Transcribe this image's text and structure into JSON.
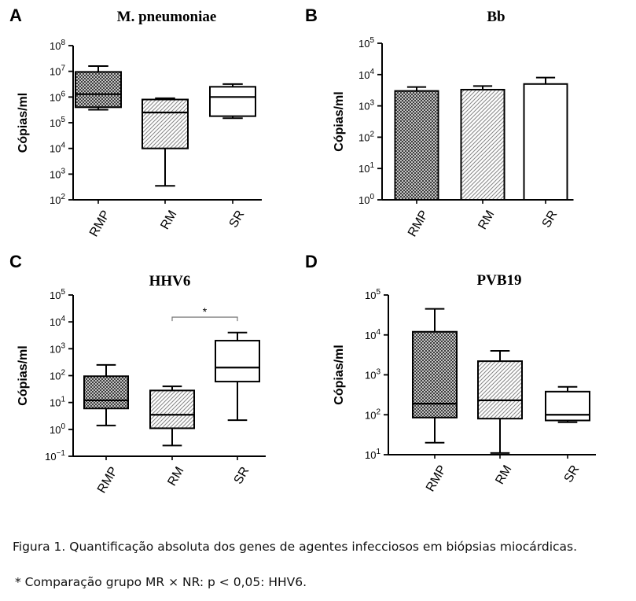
{
  "figure": {
    "caption": "Figura 1. Quantificação absoluta dos genes de agentes infecciosos em biópsias miocárdicas.",
    "footnote": "* Comparação grupo MR × NR: p < 0,05: HHV6."
  },
  "colors": {
    "ink": "#000000",
    "hatch_dark": "#3a3a3a",
    "hatch_light": "#8a8a8a",
    "fill_white": "#ffffff"
  },
  "chart_data": [
    {
      "panel": "A",
      "type": "box",
      "title": "M. pneumoniae",
      "ylabel": "Cópias/ml",
      "scale": "log10",
      "ylim_exp": [
        2,
        8
      ],
      "categories": [
        "RMP",
        "RM",
        "SR"
      ],
      "patterns": [
        "crosshatch",
        "diagonal",
        "none"
      ],
      "boxes": [
        {
          "min": 320000,
          "q1": 400000,
          "median": 1300000,
          "q3": 9500000,
          "max": 16000000
        },
        {
          "min": 350,
          "q1": 10000,
          "median": 250000,
          "q3": 800000,
          "max": 900000
        },
        {
          "min": 150000,
          "q1": 180000,
          "median": 1000000,
          "q3": 2500000,
          "max": 3200000
        }
      ]
    },
    {
      "panel": "B",
      "type": "bar",
      "title": "Bb",
      "ylabel": "Cópias/ml",
      "scale": "log10",
      "ylim_exp": [
        0,
        5
      ],
      "categories": [
        "RMP",
        "RM",
        "SR"
      ],
      "patterns": [
        "crosshatch",
        "diagonal",
        "none"
      ],
      "values": [
        3000,
        3300,
        5000
      ],
      "error_upper": [
        4000,
        4300,
        8000
      ]
    },
    {
      "panel": "C",
      "type": "box",
      "title": "HHV6",
      "ylabel": "Cópias/ml",
      "scale": "log10",
      "ylim_exp": [
        -1,
        5
      ],
      "categories": [
        "RMP",
        "RM",
        "SR"
      ],
      "patterns": [
        "crosshatch",
        "diagonal",
        "none"
      ],
      "boxes": [
        {
          "min": 1.4,
          "q1": 6,
          "median": 12,
          "q3": 95,
          "max": 250
        },
        {
          "min": 0.25,
          "q1": 1.1,
          "median": 3.5,
          "q3": 28,
          "max": 40
        },
        {
          "min": 2.2,
          "q1": 60,
          "median": 200,
          "q3": 2000,
          "max": 4000
        }
      ],
      "annotation": {
        "text": "*",
        "from": 1,
        "to": 2,
        "y": 15000
      }
    },
    {
      "panel": "D",
      "type": "box",
      "title": "PVB19",
      "ylabel": "Cópias/ml",
      "scale": "log10",
      "ylim_exp": [
        1,
        5
      ],
      "categories": [
        "RMP",
        "RM",
        "SR"
      ],
      "patterns": [
        "crosshatch",
        "diagonal",
        "none"
      ],
      "boxes": [
        {
          "min": 20,
          "q1": 85,
          "median": 190,
          "q3": 12000,
          "max": 45000
        },
        {
          "min": 11,
          "q1": 80,
          "median": 230,
          "q3": 2200,
          "max": 4000
        },
        {
          "min": 65,
          "q1": 72,
          "median": 100,
          "q3": 380,
          "max": 500
        }
      ]
    }
  ]
}
